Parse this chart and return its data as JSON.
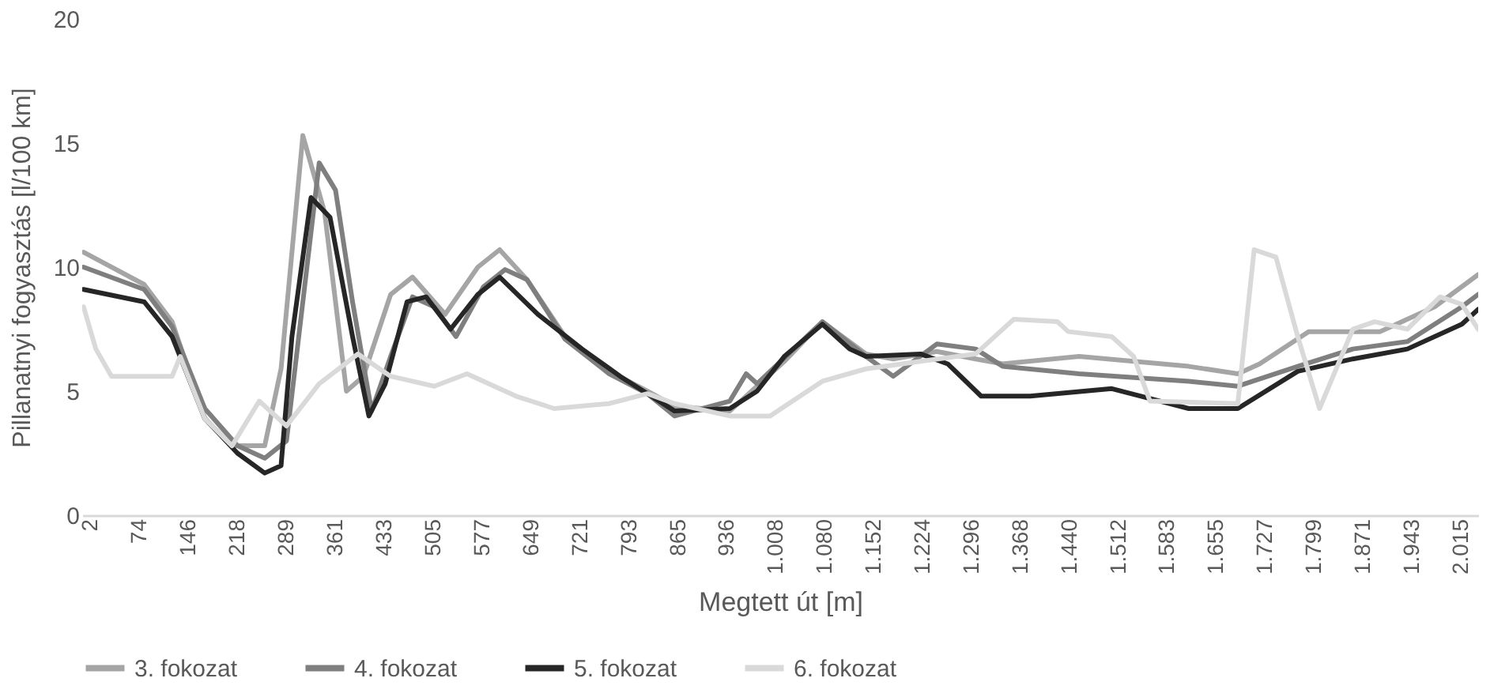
{
  "chart_data": {
    "type": "line",
    "xlabel": "Megtett út [m]",
    "ylabel": "Pillanatnyi fogyasztás [l/100 km]",
    "xlim": [
      -10,
      2040
    ],
    "ylim": [
      0,
      20
    ],
    "yticks": [
      0,
      5,
      10,
      15,
      20
    ],
    "xticks": [
      2,
      74,
      146,
      218,
      289,
      361,
      433,
      505,
      577,
      649,
      721,
      793,
      865,
      936,
      {
        "value": 1008,
        "label": "1.008"
      },
      {
        "value": 1080,
        "label": "1.080"
      },
      {
        "value": 1152,
        "label": "1.152"
      },
      {
        "value": 1224,
        "label": "1.224"
      },
      {
        "value": 1296,
        "label": "1.296"
      },
      {
        "value": 1368,
        "label": "1.368"
      },
      {
        "value": 1440,
        "label": "1.440"
      },
      {
        "value": 1512,
        "label": "1.512"
      },
      {
        "value": 1583,
        "label": "1.583"
      },
      {
        "value": 1655,
        "label": "1.655"
      },
      {
        "value": 1727,
        "label": "1.727"
      },
      {
        "value": 1799,
        "label": "1.799"
      },
      {
        "value": 1871,
        "label": "1.871"
      },
      {
        "value": 1943,
        "label": "1.943"
      },
      {
        "value": 2015,
        "label": "2.015"
      }
    ],
    "legend": "bottom",
    "series": [
      {
        "name": "3. fokozat",
        "color": "#a5a5a5",
        "x": [
          -8,
          81,
          122,
          170,
          210,
          258,
          282,
          314,
          346,
          378,
          403,
          443,
          475,
          523,
          571,
          603,
          643,
          699,
          764,
          820,
          860,
          941,
          1021,
          1077,
          1141,
          1181,
          1245,
          1302,
          1342,
          1454,
          1615,
          1687,
          1719,
          1791,
          1896,
          1976,
          2040
        ],
        "values": [
          10.6,
          9.3,
          7.8,
          3.9,
          2.8,
          2.8,
          5.9,
          15.3,
          12.2,
          5.0,
          5.6,
          8.9,
          9.6,
          8.1,
          10.0,
          10.7,
          9.5,
          7.2,
          5.8,
          5.0,
          4.4,
          4.2,
          6.2,
          7.8,
          6.5,
          6.3,
          6.6,
          6.3,
          6.1,
          6.4,
          6.0,
          5.7,
          6.1,
          7.4,
          7.4,
          8.4,
          9.7
        ]
      },
      {
        "name": "4. fokozat",
        "color": "#7f7f7f",
        "x": [
          -8,
          81,
          122,
          170,
          218,
          258,
          290,
          314,
          338,
          362,
          387,
          415,
          443,
          475,
          507,
          539,
          579,
          611,
          643,
          699,
          764,
          820,
          860,
          941,
          965,
          981,
          1077,
          1141,
          1181,
          1245,
          1302,
          1342,
          1454,
          1615,
          1687,
          1775,
          1856,
          1936,
          2016,
          2040
        ],
        "values": [
          10.0,
          9.1,
          7.6,
          4.3,
          2.8,
          2.3,
          3.0,
          8.6,
          14.2,
          13.1,
          8.6,
          4.2,
          6.4,
          8.8,
          8.4,
          7.2,
          9.2,
          9.9,
          9.5,
          7.1,
          5.7,
          4.9,
          4.0,
          4.6,
          5.7,
          5.3,
          7.8,
          6.4,
          5.6,
          6.9,
          6.7,
          6.0,
          5.7,
          5.4,
          5.2,
          6.0,
          6.7,
          7.0,
          8.4,
          8.9
        ]
      },
      {
        "name": "5. fokozat",
        "color": "#262626",
        "x": [
          -8,
          81,
          122,
          170,
          218,
          258,
          282,
          298,
          326,
          354,
          387,
          411,
          435,
          467,
          495,
          531,
          571,
          603,
          659,
          724,
          780,
          860,
          941,
          981,
          1021,
          1077,
          1117,
          1141,
          1221,
          1261,
          1310,
          1382,
          1502,
          1615,
          1687,
          1775,
          1856,
          1936,
          2016,
          2040
        ],
        "values": [
          9.1,
          8.6,
          7.2,
          3.9,
          2.5,
          1.7,
          2.0,
          7.2,
          12.8,
          12.0,
          7.2,
          4.0,
          5.3,
          8.6,
          8.8,
          7.5,
          8.9,
          9.6,
          8.1,
          6.7,
          5.6,
          4.2,
          4.3,
          5.0,
          6.4,
          7.7,
          6.7,
          6.4,
          6.5,
          6.1,
          4.8,
          4.8,
          5.1,
          4.3,
          4.3,
          5.8,
          6.3,
          6.7,
          7.7,
          8.3
        ]
      },
      {
        "name": "6. fokozat",
        "color": "#d9d9d9",
        "x": [
          -8,
          10,
          33,
          122,
          134,
          170,
          210,
          250,
          290,
          338,
          395,
          443,
          507,
          555,
          627,
          683,
          764,
          820,
          860,
          941,
          1000,
          1077,
          1141,
          1221,
          1302,
          1358,
          1422,
          1438,
          1502,
          1534,
          1558,
          1687,
          1711,
          1743,
          1775,
          1807,
          1856,
          1888,
          1936,
          1984,
          2016,
          2040
        ],
        "values": [
          8.4,
          6.7,
          5.6,
          5.6,
          6.4,
          3.9,
          2.8,
          4.6,
          3.6,
          5.3,
          6.5,
          5.6,
          5.2,
          5.7,
          4.8,
          4.3,
          4.5,
          4.9,
          4.5,
          4.0,
          4.0,
          5.4,
          5.9,
          6.2,
          6.5,
          7.9,
          7.8,
          7.4,
          7.2,
          6.4,
          4.6,
          4.5,
          10.7,
          10.4,
          7.2,
          4.3,
          7.5,
          7.8,
          7.5,
          8.8,
          8.5,
          7.5
        ]
      }
    ]
  }
}
